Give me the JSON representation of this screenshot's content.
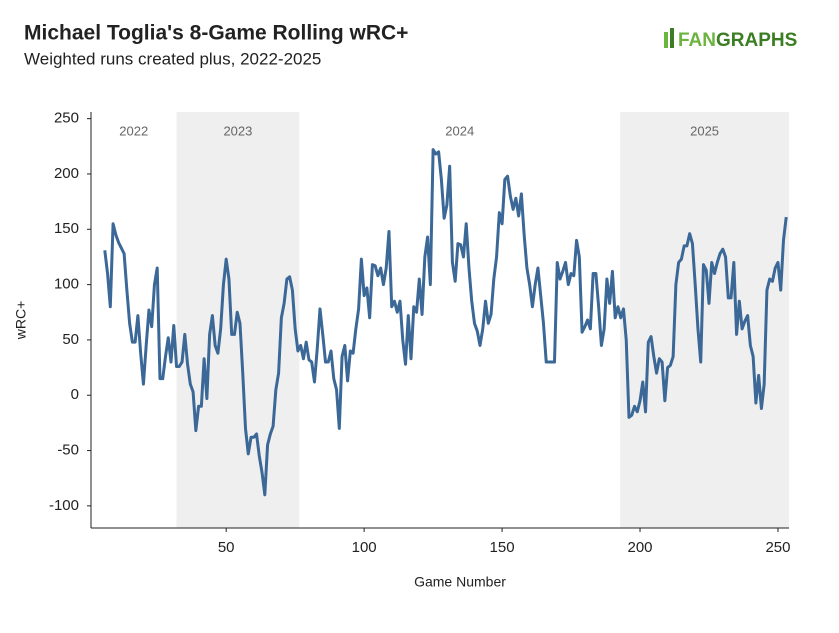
{
  "chart_data": {
    "type": "line",
    "title": "Michael Toglia's 8-Game Rolling wRC+",
    "subtitle": "Weighted runs created plus, 2022-2025",
    "logo": {
      "left": "FAN",
      "right": "GRAPHS"
    },
    "xlabel": "Game Number",
    "ylabel": "wRC+",
    "xlim": [
      1,
      254
    ],
    "ylim": [
      -120,
      256
    ],
    "xticks": [
      50,
      100,
      150,
      200,
      250
    ],
    "yticks": [
      -100,
      -50,
      0,
      50,
      100,
      150,
      200,
      250
    ],
    "eras": [
      {
        "label": "2022",
        "start": 1,
        "end": 32,
        "shaded": false
      },
      {
        "label": "2023",
        "start": 32,
        "end": 76.5,
        "shaded": true
      },
      {
        "label": "2024",
        "start": 76.5,
        "end": 192.8,
        "shaded": false
      },
      {
        "label": "2025",
        "start": 192.8,
        "end": 254,
        "shaded": true
      }
    ],
    "shade_color": "#efefef",
    "series": [
      {
        "name": "wRC+",
        "color": "#3b6897",
        "x": [
          6,
          7,
          8,
          9,
          10,
          11,
          12,
          13,
          14,
          15,
          16,
          17,
          18,
          19,
          20,
          21,
          22,
          23,
          24,
          25,
          26,
          27,
          28,
          29,
          30,
          31,
          32,
          33,
          34,
          35,
          36,
          37,
          38,
          39,
          40,
          41,
          42,
          43,
          44,
          45,
          46,
          47,
          48,
          49,
          50,
          51,
          52,
          53,
          54,
          55,
          56,
          57,
          58,
          59,
          60,
          61,
          62,
          63,
          64,
          65,
          66,
          67,
          68,
          69,
          70,
          71,
          72,
          73,
          74,
          75,
          76,
          77,
          78,
          79,
          80,
          81,
          82,
          83,
          84,
          85,
          86,
          87,
          88,
          89,
          90,
          91,
          92,
          93,
          94,
          95,
          96,
          97,
          98,
          99,
          100,
          101,
          102,
          103,
          104,
          105,
          106,
          107,
          108,
          109,
          110,
          111,
          112,
          113,
          114,
          115,
          116,
          117,
          118,
          119,
          120,
          121,
          122,
          123,
          124,
          125,
          126,
          127,
          128,
          129,
          130,
          131,
          132,
          133,
          134,
          135,
          136,
          137,
          138,
          139,
          140,
          141,
          142,
          143,
          144,
          145,
          146,
          147,
          148,
          149,
          150,
          151,
          152,
          153,
          154,
          155,
          156,
          157,
          158,
          159,
          160,
          161,
          162,
          163,
          164,
          165,
          166,
          167,
          168,
          169,
          170,
          171,
          172,
          173,
          174,
          175,
          176,
          177,
          178,
          179,
          180,
          181,
          182,
          183,
          184,
          185,
          186,
          187,
          188,
          189,
          190,
          191,
          192,
          193,
          194,
          195,
          196,
          197,
          198,
          199,
          200,
          201,
          202,
          203,
          204,
          205,
          206,
          207,
          208,
          209,
          210,
          211,
          212,
          213,
          214,
          215,
          216,
          217,
          218,
          219,
          220,
          221,
          222,
          223,
          224,
          225,
          226,
          227,
          228,
          229,
          230,
          231,
          232,
          233,
          234,
          235,
          236,
          237,
          238,
          239,
          240,
          241,
          242,
          243,
          244,
          245,
          246,
          247,
          248,
          249,
          250,
          251,
          252,
          253
        ],
        "values": [
          131,
          110,
          80,
          155,
          145,
          138,
          133,
          128,
          95,
          65,
          48,
          48,
          72,
          38,
          10,
          45,
          77,
          62,
          100,
          115,
          15,
          15,
          35,
          52,
          30,
          63,
          26,
          26,
          30,
          55,
          28,
          10,
          3,
          -32,
          -10,
          -10,
          33,
          -3,
          55,
          72,
          45,
          38,
          60,
          100,
          123,
          105,
          55,
          55,
          75,
          65,
          20,
          -30,
          -53,
          -38,
          -38,
          -35,
          -55,
          -70,
          -90,
          -45,
          -35,
          -28,
          5,
          20,
          70,
          83,
          105,
          107,
          95,
          60,
          40,
          45,
          33,
          48,
          32,
          30,
          12,
          42,
          78,
          55,
          30,
          30,
          40,
          15,
          5,
          -30,
          35,
          45,
          13,
          40,
          38,
          60,
          78,
          123,
          90,
          97,
          70,
          118,
          117,
          108,
          115,
          100,
          115,
          148,
          80,
          85,
          75,
          85,
          50,
          28,
          72,
          33,
          80,
          75,
          105,
          73,
          125,
          143,
          100,
          222,
          218,
          220,
          195,
          160,
          172,
          207,
          120,
          103,
          137,
          136,
          125,
          155,
          115,
          85,
          65,
          58,
          45,
          60,
          85,
          65,
          73,
          105,
          125,
          165,
          155,
          195,
          198,
          180,
          168,
          178,
          162,
          182,
          145,
          115,
          100,
          80,
          100,
          115,
          90,
          65,
          30,
          30,
          30,
          30,
          120,
          105,
          112,
          120,
          100,
          110,
          108,
          140,
          125,
          57,
          62,
          68,
          60,
          110,
          110,
          80,
          45,
          60,
          105,
          83,
          112,
          70,
          80,
          70,
          78,
          50,
          -20,
          -18,
          -10,
          -15,
          -5,
          12,
          -15,
          48,
          53,
          35,
          20,
          33,
          30,
          -5,
          25,
          27,
          35,
          100,
          120,
          123,
          135,
          135,
          146,
          137,
          100,
          60,
          30,
          118,
          113,
          83,
          120,
          110,
          120,
          128,
          132,
          125,
          88,
          88,
          120,
          55,
          85,
          60,
          67,
          72,
          45,
          35,
          -7,
          18,
          -12,
          10,
          95,
          105,
          103,
          115,
          120,
          95,
          140,
          161
        ]
      }
    ]
  }
}
